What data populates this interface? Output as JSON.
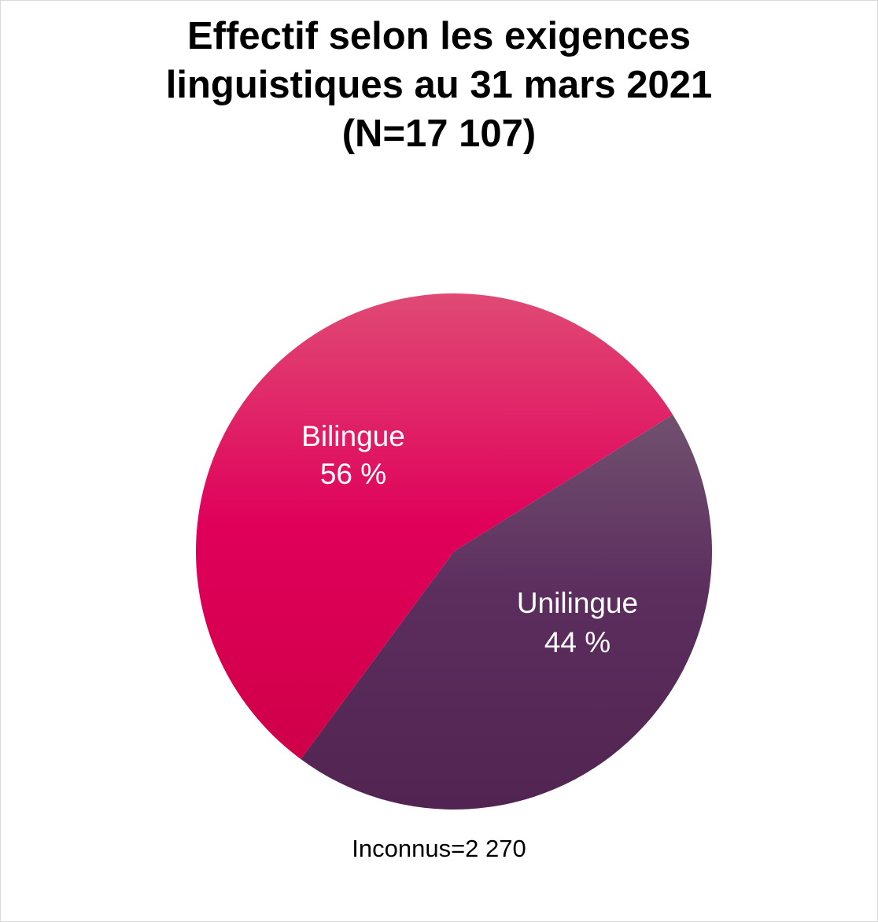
{
  "chart_data": {
    "type": "pie",
    "title": [
      "Effectif selon les exigences",
      "linguistiques au 31 mars 2021",
      "(N=17 107)"
    ],
    "slices": [
      {
        "name": "Bilingue",
        "value": 56,
        "label_value": "56 %",
        "color": "#dc0052"
      },
      {
        "name": "Unilingue",
        "value": 44,
        "label_value": "44 %",
        "color": "#5a2a5c"
      }
    ],
    "footnote": "Inconnus=2 270",
    "legend": "none"
  }
}
